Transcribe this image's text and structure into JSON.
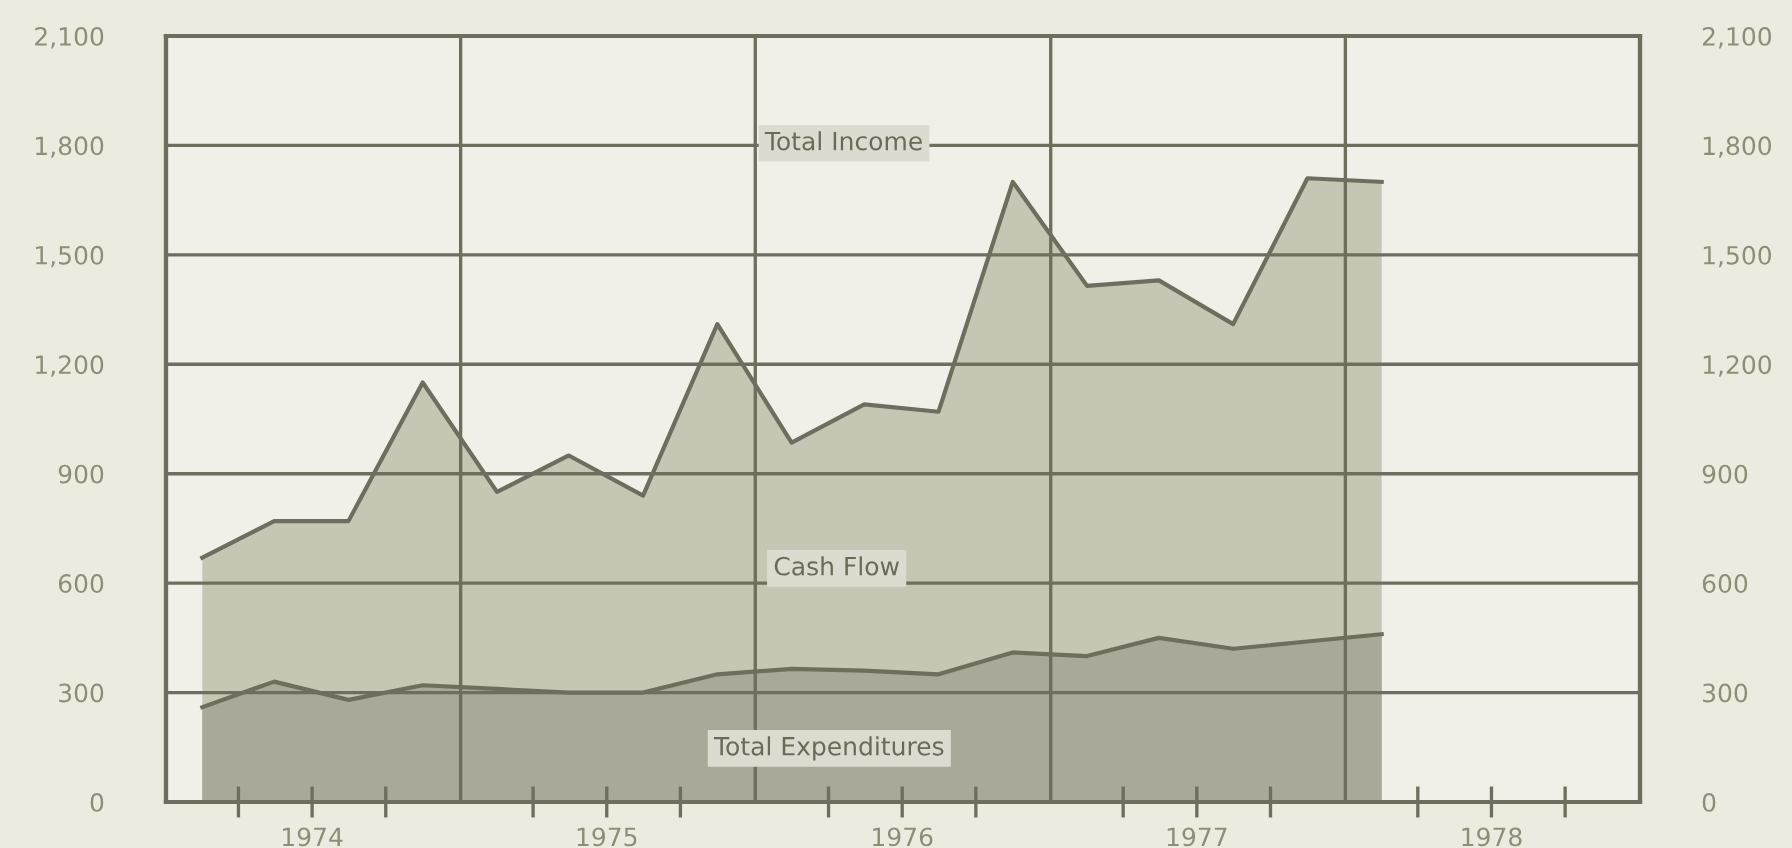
{
  "chart_data": {
    "type": "area",
    "x": [
      "1974-02-15",
      "1974-05-15",
      "1974-08-15",
      "1974-11-15",
      "1975-02-15",
      "1975-05-15",
      "1975-08-15",
      "1975-11-15",
      "1976-02-15",
      "1976-05-15",
      "1976-08-15",
      "1976-11-15",
      "1977-02-15",
      "1977-05-15",
      "1977-08-15",
      "1977-11-15",
      "1978-02-15"
    ],
    "series": [
      {
        "color": "#c6c6b4",
        "values": [
          670,
          770,
          770,
          1150,
          850,
          950,
          840,
          1310,
          985,
          1090,
          1070,
          1700,
          1415,
          1430,
          1310,
          1710,
          1700
        ]
      },
      {
        "color": "#a9a899",
        "values": [
          260,
          330,
          280,
          320,
          310,
          300,
          300,
          350,
          365,
          360,
          350,
          410,
          400,
          450,
          420,
          440,
          460
        ]
      }
    ],
    "annotations": [
      "Total Income",
      "Cash Flow",
      "Total Expenditures"
    ],
    "xlim": [
      "1974-01-01",
      "1979-01-01"
    ],
    "xticks": [
      {
        "value": "1974-07-01",
        "label": "1974"
      },
      {
        "value": "1975-07-01",
        "label": "1975"
      },
      {
        "value": "1976-07-01",
        "label": "1976"
      },
      {
        "value": "1977-07-01",
        "label": "1977"
      },
      {
        "value": "1978-07-01",
        "label": "1978"
      }
    ],
    "ylim": [
      0,
      2100
    ],
    "yticks": [
      {
        "value": 0,
        "label": "0"
      },
      {
        "value": 300,
        "label": "300"
      },
      {
        "value": 600,
        "label": "600"
      },
      {
        "value": 900,
        "label": "900"
      },
      {
        "value": 1200,
        "label": "1,200"
      },
      {
        "value": 1500,
        "label": "1,500"
      },
      {
        "value": 1800,
        "label": "1,800"
      },
      {
        "value": 2100,
        "label": "2,100"
      }
    ],
    "y2lim": [
      0,
      2100
    ],
    "y2ticks": [
      {
        "value": 0,
        "label": "0"
      },
      {
        "value": 300,
        "label": "300"
      },
      {
        "value": 600,
        "label": "600"
      },
      {
        "value": 900,
        "label": "900"
      },
      {
        "value": 1200,
        "label": "1,200"
      },
      {
        "value": 1500,
        "label": "1,500"
      },
      {
        "value": 1800,
        "label": "1,800"
      },
      {
        "value": 2100,
        "label": "2,100"
      }
    ],
    "ref_lines": [
      {
        "axis": "x",
        "value": "1975-01-01",
        "color": "#6e6e5e"
      },
      {
        "axis": "x",
        "value": "1976-01-01",
        "color": "#6e6e5e"
      },
      {
        "axis": "x",
        "value": "1977-01-01",
        "color": "#6e6e5e"
      },
      {
        "axis": "x",
        "value": "1978-01-01",
        "color": "#6e6e5e"
      }
    ],
    "grid": "y"
  }
}
